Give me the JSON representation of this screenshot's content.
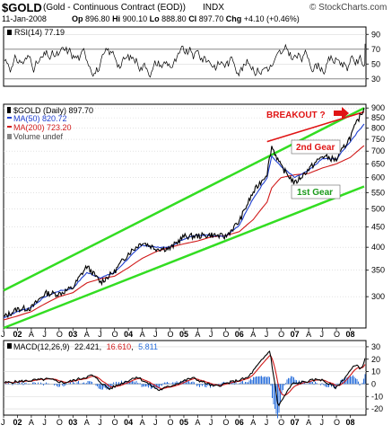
{
  "header": {
    "symbol": "$GOLD",
    "name": "(Gold - Continuous Contract (EOD))",
    "exchange": "INDX",
    "brand": "© StockCharts.com",
    "date": "11-Jan-2008",
    "open_label": "Op",
    "open": "896.80",
    "high_label": "Hi",
    "high": "900.10",
    "low_label": "Lo",
    "low": "888.80",
    "close_label": "Cl",
    "close": "897.70",
    "change_label": "Chg",
    "change": "+4.10 (+0.46%)"
  },
  "rsi_panel": {
    "legend": "RSI(14) 77.19",
    "levels": [
      30,
      50,
      70,
      90
    ],
    "tick_labels": [
      "90",
      "70",
      "50",
      "30"
    ]
  },
  "price_panel": {
    "legend_main": "$GOLD (Daily) 897.70",
    "legend_ma50": "MA(50) 820.72",
    "legend_ma200": "MA(200) 723.20",
    "legend_volume": "Volume undef",
    "annotations": {
      "breakout": "BREAKOUT ?",
      "gear2": "2nd Gear",
      "gear1": "1st Gear"
    },
    "y_ticks": [
      900,
      850,
      800,
      750,
      700,
      650,
      600,
      550,
      500,
      450,
      400,
      350,
      300
    ],
    "y_tick_labels": [
      "900",
      "850",
      "800",
      "750",
      "700",
      "650",
      "600",
      "550",
      "500",
      "450",
      "400",
      "350",
      "300"
    ]
  },
  "macd_panel": {
    "legend_prefix": "MACD(12,26,9)",
    "macd": "22.421",
    "signal": "16.610",
    "hist": "5.811",
    "y_ticks": [
      30,
      20,
      10,
      0,
      -10,
      -20
    ],
    "y_tick_labels": [
      "30",
      "20",
      "10",
      "0",
      "-10",
      "-20"
    ]
  },
  "x_axis": {
    "labels": [
      "J",
      "02",
      "A",
      "J",
      "O",
      "03",
      "A",
      "J",
      "O",
      "04",
      "A",
      "J",
      "O",
      "05",
      "A",
      "J",
      "O",
      "06",
      "A",
      "J",
      "O",
      "07",
      "A",
      "J",
      "O",
      "08"
    ],
    "bold": [
      "02",
      "03",
      "04",
      "05",
      "06",
      "07",
      "08"
    ]
  },
  "colors": {
    "price": "#000000",
    "ma50": "#1f3fcf",
    "ma200": "#d11a1a",
    "channel": "#33dd22",
    "breakout_line": "#e01414",
    "annotation": "#e01414",
    "gear1_text": "#1a9a1a",
    "macd_hist": "#2a6fdb",
    "rsi_line": "#000000"
  },
  "chart_data": {
    "type": "line",
    "title": "$GOLD (Gold - Continuous Contract (EOD)) INDX",
    "scale": "log",
    "ylim": [
      250,
      920
    ],
    "x": [
      "2001-07",
      "2001-10",
      "2002-01",
      "2002-04",
      "2002-07",
      "2002-10",
      "2003-01",
      "2003-04",
      "2003-07",
      "2003-10",
      "2004-01",
      "2004-04",
      "2004-07",
      "2004-10",
      "2005-01",
      "2005-04",
      "2005-07",
      "2005-10",
      "2006-01",
      "2006-04",
      "2006-05",
      "2006-07",
      "2006-10",
      "2007-01",
      "2007-04",
      "2007-07",
      "2007-10",
      "2008-01"
    ],
    "series": [
      {
        "name": "$GOLD",
        "values": [
          266,
          279,
          281,
          306,
          305,
          316,
          358,
          326,
          347,
          386,
          412,
          397,
          397,
          426,
          427,
          430,
          425,
          465,
          550,
          615,
          720,
          640,
          580,
          630,
          680,
          665,
          760,
          900
        ]
      },
      {
        "name": "MA(50)",
        "values": [
          265,
          275,
          282,
          300,
          310,
          315,
          345,
          335,
          345,
          375,
          405,
          400,
          400,
          420,
          430,
          428,
          427,
          455,
          530,
          600,
          680,
          640,
          600,
          625,
          670,
          668,
          740,
          820
        ]
      },
      {
        "name": "MA(200)",
        "values": [
          262,
          268,
          275,
          288,
          300,
          307,
          325,
          333,
          338,
          355,
          375,
          390,
          400,
          408,
          415,
          425,
          428,
          438,
          470,
          520,
          565,
          600,
          610,
          615,
          635,
          650,
          675,
          723
        ]
      }
    ],
    "channels": [
      {
        "name": "upper",
        "x": [
          "2001-07",
          "2008-01"
        ],
        "values": [
          311,
          900
        ]
      },
      {
        "name": "lower",
        "x": [
          "2001-07",
          "2008-01"
        ],
        "values": [
          250,
          570
        ]
      },
      {
        "name": "breakout",
        "x": [
          "2006-04",
          "2008-01"
        ],
        "values": [
          740,
          880
        ]
      }
    ],
    "rsi": {
      "name": "RSI(14)",
      "ylim": [
        20,
        100
      ],
      "last": 77.19
    },
    "macd": {
      "name": "MACD(12,26,9)",
      "ylim": [
        -25,
        35
      ],
      "macd": 22.421,
      "signal": 16.61,
      "hist": 5.811
    }
  }
}
